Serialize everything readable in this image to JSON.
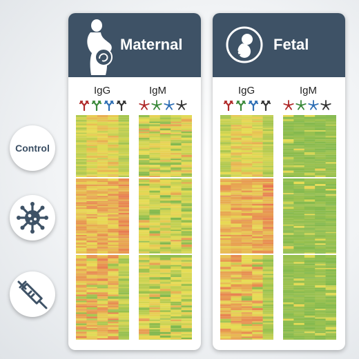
{
  "panels": [
    {
      "title": "Maternal",
      "icon": "pregnant-woman-icon",
      "antibodies": [
        {
          "label": "IgG"
        },
        {
          "label": "IgM"
        }
      ]
    },
    {
      "title": "Fetal",
      "icon": "fetus-icon",
      "antibodies": [
        {
          "label": "IgG"
        },
        {
          "label": "IgM"
        }
      ]
    }
  ],
  "rows": [
    {
      "label": "Control"
    },
    {
      "label": "",
      "icon": "virus-icon"
    },
    {
      "label": "",
      "icon": "syringe-icon"
    }
  ],
  "colors": {
    "header": "#3e5266",
    "icon": "#3e5266",
    "igg_subclass_colors": [
      "#b02a2a",
      "#3b8a3b",
      "#2f6fb5",
      "#333333"
    ],
    "heatmap_scale": [
      "#6ab04c",
      "#e8dd55",
      "#e86a50"
    ]
  },
  "heatmaps": [
    {
      "panel": "Maternal",
      "antibody": "IgG",
      "pattern": "mixed-high"
    },
    {
      "panel": "Maternal",
      "antibody": "IgM",
      "pattern": "mixed-yellow"
    },
    {
      "panel": "Fetal",
      "antibody": "IgG",
      "pattern": "mixed-high"
    },
    {
      "panel": "Fetal",
      "antibody": "IgM",
      "pattern": "mostly-green"
    }
  ]
}
